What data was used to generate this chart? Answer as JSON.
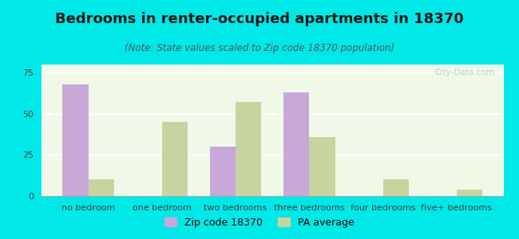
{
  "title": "Bedrooms in renter-occupied apartments in 18370",
  "subtitle": "(Note: State values scaled to Zip code 18370 population)",
  "categories": [
    "no bedroom",
    "one bedroom",
    "two bedrooms",
    "three bedrooms",
    "four bedrooms",
    "five+ bedrooms"
  ],
  "zip_values": [
    68,
    0,
    30,
    63,
    0,
    0
  ],
  "pa_values": [
    10,
    45,
    57,
    36,
    10,
    4
  ],
  "zip_color": "#c8a8d8",
  "pa_color": "#c8d4a0",
  "background_outer": "#00e8e8",
  "background_inner": "#f0f8e8",
  "ylim": [
    0,
    80
  ],
  "yticks": [
    0,
    25,
    50,
    75
  ],
  "bar_width": 0.35,
  "legend_zip_label": "Zip code 18370",
  "legend_pa_label": "PA average",
  "title_fontsize": 13,
  "subtitle_fontsize": 8.5,
  "tick_fontsize": 8,
  "legend_fontsize": 9
}
